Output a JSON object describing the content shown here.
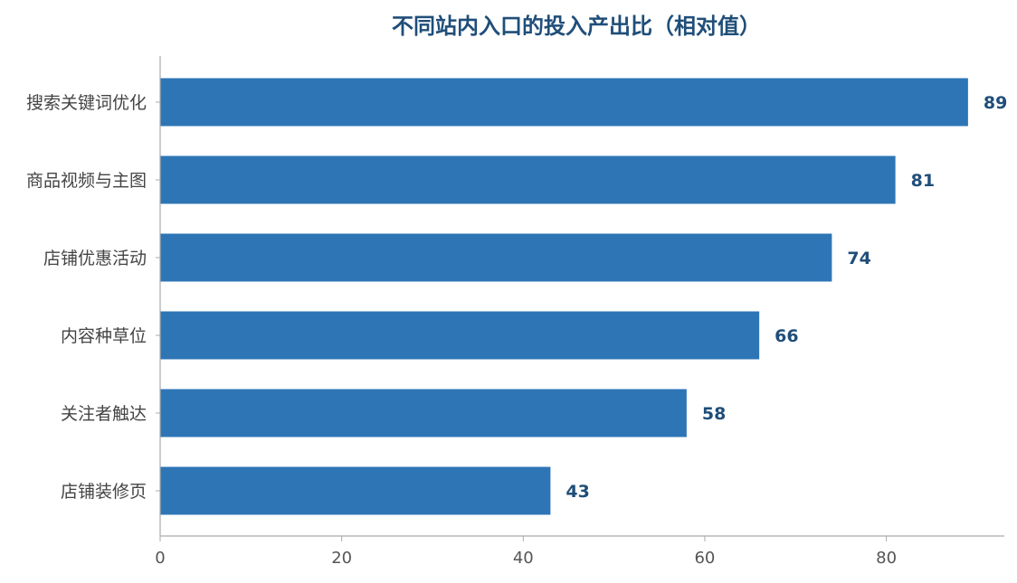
{
  "chart_data": {
    "type": "bar",
    "orientation": "horizontal",
    "title": "不同站内入口的投入产出比（相对值）",
    "xlabel": "",
    "ylabel": "",
    "categories": [
      "搜索关键词优化",
      "商品视频与主图",
      "店铺优惠活动",
      "内容种草位",
      "关注者触达",
      "店铺装修页"
    ],
    "values": [
      89,
      81,
      74,
      66,
      58,
      43
    ],
    "xlim": [
      0,
      93
    ],
    "x_ticks": [
      "0",
      "20",
      "40",
      "60",
      "80"
    ],
    "grid": false,
    "data_labels": true,
    "colors": {
      "bar": "#2e75b6",
      "title": "#1f4e79",
      "data_label": "#1f4e79",
      "category_label": "#444444",
      "tick_label": "#555555",
      "axis": "#aaaaaa"
    }
  }
}
